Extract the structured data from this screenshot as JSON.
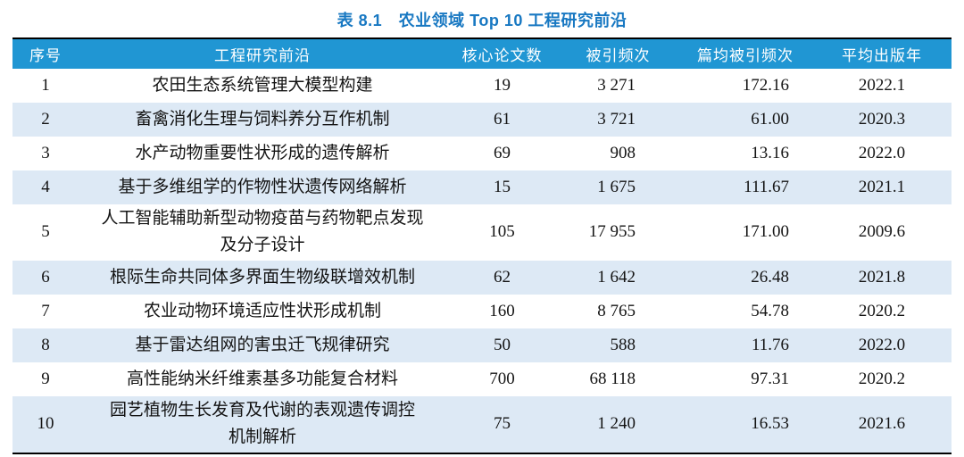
{
  "title": "表 8.1　农业领域 Top 10 工程研究前沿",
  "theme": {
    "title_color": "#1878c2",
    "header_bg": "#2096d3",
    "header_text": "#ffffff",
    "alt_row_bg": "#dde9f5",
    "border_color": "#000000",
    "body_text": "#141414"
  },
  "table": {
    "columns": [
      {
        "key": "rank",
        "label": "序号"
      },
      {
        "key": "front",
        "label": "工程研究前沿"
      },
      {
        "key": "papers",
        "label": "核心论文数"
      },
      {
        "key": "citations",
        "label": "被引频次"
      },
      {
        "key": "cpp",
        "label": "篇均被引频次"
      },
      {
        "key": "year",
        "label": "平均出版年"
      }
    ],
    "rows": [
      {
        "rank": "1",
        "front": "农田生态系统管理大模型构建",
        "papers": "19",
        "citations": "3 271",
        "cpp": "172.16",
        "year": "2022.1"
      },
      {
        "rank": "2",
        "front": "畜禽消化生理与饲料养分互作机制",
        "papers": "61",
        "citations": "3 721",
        "cpp": "61.00",
        "year": "2020.3"
      },
      {
        "rank": "3",
        "front": "水产动物重要性状形成的遗传解析",
        "papers": "69",
        "citations": "908",
        "cpp": "13.16",
        "year": "2022.0"
      },
      {
        "rank": "4",
        "front": "基于多维组学的作物性状遗传网络解析",
        "papers": "15",
        "citations": "1 675",
        "cpp": "111.67",
        "year": "2021.1"
      },
      {
        "rank": "5",
        "front": "人工智能辅助新型动物疫苗与药物靶点发现\n及分子设计",
        "papers": "105",
        "citations": "17 955",
        "cpp": "171.00",
        "year": "2009.6"
      },
      {
        "rank": "6",
        "front": "根际生命共同体多界面生物级联增效机制",
        "papers": "62",
        "citations": "1 642",
        "cpp": "26.48",
        "year": "2021.8"
      },
      {
        "rank": "7",
        "front": "农业动物环境适应性状形成机制",
        "papers": "160",
        "citations": "8 765",
        "cpp": "54.78",
        "year": "2020.2"
      },
      {
        "rank": "8",
        "front": "基于雷达组网的害虫迁飞规律研究",
        "papers": "50",
        "citations": "588",
        "cpp": "11.76",
        "year": "2022.0"
      },
      {
        "rank": "9",
        "front": "高性能纳米纤维素基多功能复合材料",
        "papers": "700",
        "citations": "68 118",
        "cpp": "97.31",
        "year": "2020.2"
      },
      {
        "rank": "10",
        "front": "园艺植物生长发育及代谢的表观遗传调控\n机制解析",
        "papers": "75",
        "citations": "1 240",
        "cpp": "16.53",
        "year": "2021.6"
      }
    ]
  }
}
